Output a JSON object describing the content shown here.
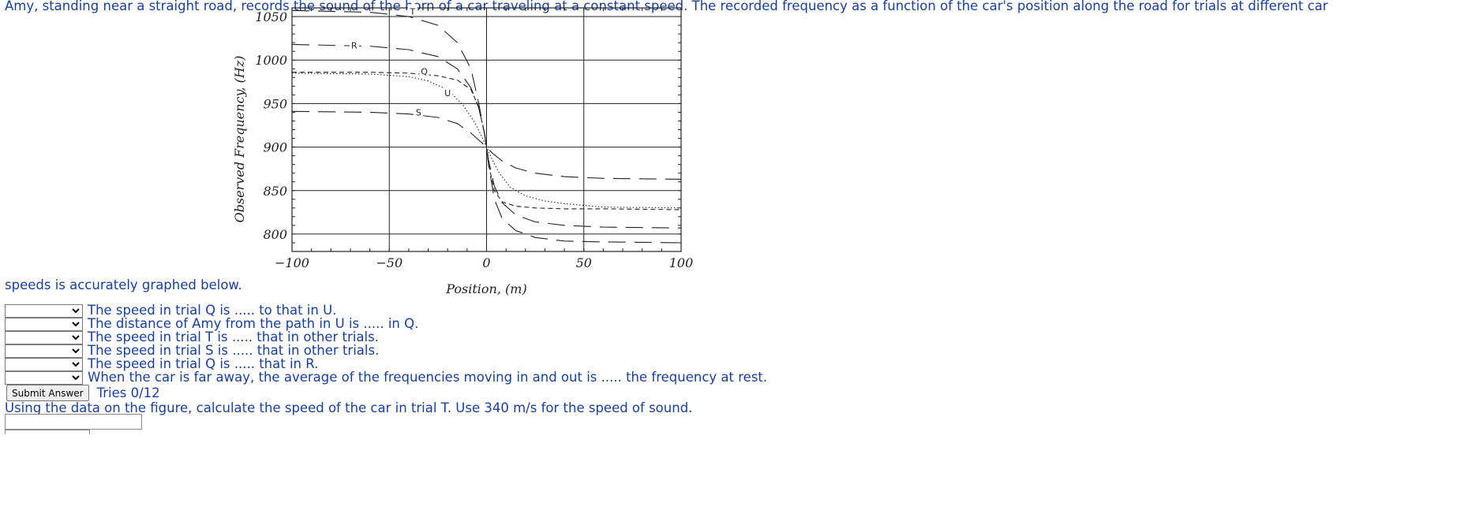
{
  "problem": {
    "intro_line1": "Amy, standing near a straight road, records the sound of the horn of a car traveling at a constant speed. The recorded frequency as a function of the car's position along the road for trials at different car",
    "intro_line2": "speeds is accurately graphed below."
  },
  "chart_data": {
    "type": "line",
    "xlabel": "Position,  (m)",
    "ylabel": "Observed Frequency,  (Hz)",
    "xlim": [
      -100,
      100
    ],
    "ylim": [
      780,
      1060
    ],
    "x_ticks": [
      -100,
      -50,
      0,
      50,
      100
    ],
    "x_tick_labels": [
      "−100",
      "−50",
      "0",
      "50",
      "100"
    ],
    "y_ticks": [
      800,
      850,
      900,
      950,
      1000,
      1050
    ],
    "y_tick_labels": [
      "800",
      "850",
      "900",
      "950",
      "1000",
      "1050"
    ],
    "grid": true,
    "series": [
      {
        "name": "T",
        "style": "long-dash",
        "values": [
          [
            -100,
            1057
          ],
          [
            -60,
            1055
          ],
          [
            -40,
            1050
          ],
          [
            -25,
            1040
          ],
          [
            -15,
            1020
          ],
          [
            -8,
            990
          ],
          [
            -4,
            950
          ],
          [
            -1,
            915
          ],
          [
            0,
            900
          ],
          [
            1,
            880
          ],
          [
            4,
            840
          ],
          [
            8,
            818
          ],
          [
            15,
            804
          ],
          [
            25,
            796
          ],
          [
            40,
            792
          ],
          [
            60,
            791
          ],
          [
            100,
            790
          ]
        ]
      },
      {
        "name": "R",
        "style": "long-dash",
        "values": [
          [
            -100,
            1018
          ],
          [
            -60,
            1016
          ],
          [
            -40,
            1012
          ],
          [
            -25,
            1004
          ],
          [
            -15,
            990
          ],
          [
            -8,
            968
          ],
          [
            -4,
            945
          ],
          [
            -1,
            915
          ],
          [
            0,
            900
          ],
          [
            1,
            885
          ],
          [
            4,
            855
          ],
          [
            8,
            836
          ],
          [
            15,
            822
          ],
          [
            25,
            814
          ],
          [
            40,
            810
          ],
          [
            60,
            808
          ],
          [
            100,
            807
          ]
        ]
      },
      {
        "name": "Q",
        "style": "short-dash",
        "values": [
          [
            -100,
            986
          ],
          [
            -60,
            986
          ],
          [
            -40,
            985
          ],
          [
            -25,
            982
          ],
          [
            -15,
            977
          ],
          [
            -8,
            966
          ],
          [
            -4,
            946
          ],
          [
            -1,
            915
          ],
          [
            0,
            900
          ],
          [
            1,
            880
          ],
          [
            4,
            850
          ],
          [
            8,
            837
          ],
          [
            15,
            832
          ],
          [
            25,
            830
          ],
          [
            40,
            829
          ],
          [
            60,
            829
          ],
          [
            100,
            828
          ]
        ]
      },
      {
        "name": "U",
        "style": "dotted",
        "values": [
          [
            -100,
            985
          ],
          [
            -60,
            984
          ],
          [
            -40,
            981
          ],
          [
            -30,
            976
          ],
          [
            -20,
            966
          ],
          [
            -12,
            948
          ],
          [
            -6,
            928
          ],
          [
            -2,
            910
          ],
          [
            0,
            900
          ],
          [
            2,
            890
          ],
          [
            6,
            872
          ],
          [
            12,
            854
          ],
          [
            20,
            844
          ],
          [
            30,
            838
          ],
          [
            40,
            835
          ],
          [
            60,
            831
          ],
          [
            100,
            830
          ]
        ]
      },
      {
        "name": "S",
        "style": "long-dash",
        "values": [
          [
            -100,
            941
          ],
          [
            -60,
            940
          ],
          [
            -40,
            938
          ],
          [
            -25,
            934
          ],
          [
            -15,
            927
          ],
          [
            -8,
            916
          ],
          [
            -3,
            906
          ],
          [
            0,
            900
          ],
          [
            3,
            893
          ],
          [
            8,
            884
          ],
          [
            15,
            876
          ],
          [
            25,
            870
          ],
          [
            40,
            866
          ],
          [
            60,
            864
          ],
          [
            100,
            863
          ]
        ]
      }
    ],
    "series_labels": [
      {
        "name": "T",
        "x": -38,
        "y": 1057
      },
      {
        "name": "R",
        "x": -68,
        "y": 1018
      },
      {
        "name": "Q",
        "x": -32,
        "y": 988
      },
      {
        "name": "U",
        "x": -20,
        "y": 963
      },
      {
        "name": "S",
        "x": -35,
        "y": 941
      }
    ]
  },
  "questions": {
    "items": [
      {
        "text": "The speed in trial Q is ..... to that in U.",
        "selected": ""
      },
      {
        "text": "The distance of Amy from the path in U is ..... in Q.",
        "selected": ""
      },
      {
        "text": "The speed in trial T is ..... that in other trials.",
        "selected": ""
      },
      {
        "text": "The speed in trial S is ..... that in other trials.",
        "selected": ""
      },
      {
        "text": "The speed in trial Q is ..... that in R.",
        "selected": ""
      },
      {
        "text": "When the car is far away, the average of the frequencies moving in and out is ..... the frequency at rest.",
        "selected": ""
      }
    ]
  },
  "submit": {
    "label": "Submit Answer",
    "tries": "Tries 0/12"
  },
  "followup": {
    "question": "Using the data on the figure, calculate the speed of the car in trial T. Use 340 m/s for the speed of sound.",
    "answer_value": ""
  }
}
